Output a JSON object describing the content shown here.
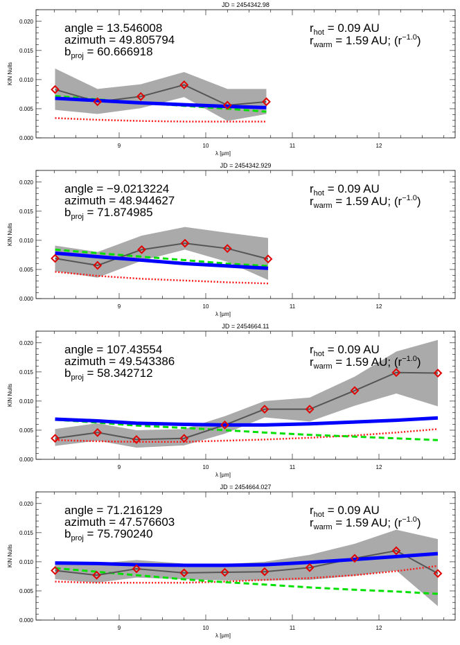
{
  "chart_data": [
    {
      "type": "line",
      "title": "JD = 2454342.98",
      "xlabel": "λ [µm]",
      "ylabel": "KIN Nulls",
      "xlim": [
        8.04,
        12.88
      ],
      "ylim": [
        0,
        0.022
      ],
      "xticks": [
        9,
        10,
        11,
        12
      ],
      "yticks": [
        "0.000",
        "0.005",
        "0.010",
        "0.015",
        "0.020"
      ],
      "annotation_left": {
        "angle": "angle = 13.546008",
        "azimuth": "azimuth = 49.805794",
        "b": "b",
        "b_sub": "proj",
        "b_value": " = 60.666918"
      },
      "annotation_right": {
        "r": "r",
        "hot_sub": "hot",
        "hot_value": " = 0.09 AU",
        "warm_sub": "warm",
        "warm_value": " = 1.59 AU; (r",
        "exponent": "−1.0",
        "close": ")"
      },
      "x": [
        8.26,
        8.75,
        9.25,
        9.75,
        10.25,
        10.7
      ],
      "series": [
        {
          "role": "measured",
          "values": [
            0.0083,
            0.0062,
            0.0071,
            0.0091,
            0.0056,
            0.0062
          ],
          "upper": [
            0.0119,
            0.0084,
            0.0092,
            0.0113,
            0.0084,
            0.0084
          ],
          "lower": [
            0.0048,
            0.0041,
            0.0051,
            0.007,
            0.0029,
            0.0041
          ]
        },
        {
          "role": "total-model",
          "values": [
            0.0068,
            0.0064,
            0.006,
            0.0057,
            0.0054,
            0.0052
          ]
        },
        {
          "role": "warm-model",
          "values": [
            0.0072,
            0.0066,
            0.006,
            0.0055,
            0.005,
            0.0045
          ]
        },
        {
          "role": "hot-model",
          "values": [
            0.0034,
            0.0031,
            0.0029,
            0.0028,
            0.0028,
            0.0028
          ]
        }
      ]
    },
    {
      "type": "line",
      "title": "JD = 2454342.929",
      "xlabel": "λ [µm]",
      "ylabel": "KIN Nulls",
      "xlim": [
        8.04,
        12.88
      ],
      "ylim": [
        0,
        0.022
      ],
      "xticks": [
        9,
        10,
        11,
        12
      ],
      "yticks": [
        "0.000",
        "0.005",
        "0.010",
        "0.015",
        "0.020"
      ],
      "annotation_left": {
        "angle": "angle = −9.0213224",
        "azimuth": "azimuth = 48.944627",
        "b": "b",
        "b_sub": "proj",
        "b_value": " = 71.874985"
      },
      "annotation_right": {
        "r": "r",
        "hot_sub": "hot",
        "hot_value": " = 0.09 AU",
        "warm_sub": "warm",
        "warm_value": " = 1.59 AU; (r",
        "exponent": "−1.0",
        "close": ")"
      },
      "x": [
        8.26,
        8.75,
        9.26,
        9.76,
        10.25,
        10.72
      ],
      "series": [
        {
          "role": "measured",
          "values": [
            0.0069,
            0.0057,
            0.0084,
            0.0095,
            0.0086,
            0.0068
          ],
          "upper": [
            0.0091,
            0.008,
            0.0108,
            0.0123,
            0.0113,
            0.0104
          ],
          "lower": [
            0.0047,
            0.0036,
            0.0065,
            0.0084,
            0.0063,
            0.0032
          ]
        },
        {
          "role": "total-model",
          "values": [
            0.0078,
            0.0072,
            0.0066,
            0.006,
            0.0056,
            0.0052
          ]
        },
        {
          "role": "warm-model",
          "values": [
            0.0084,
            0.0078,
            0.0072,
            0.0066,
            0.006,
            0.0056
          ]
        },
        {
          "role": "hot-model",
          "values": [
            0.0046,
            0.0039,
            0.0034,
            0.0031,
            0.0028,
            0.0026
          ]
        }
      ]
    },
    {
      "type": "line",
      "title": "JD = 2454664.11",
      "xlabel": "λ [µm]",
      "ylabel": "KIN Nulls",
      "xlim": [
        8.04,
        12.88
      ],
      "ylim": [
        0,
        0.022
      ],
      "xticks": [
        9,
        10,
        11,
        12
      ],
      "yticks": [
        "0.000",
        "0.005",
        "0.010",
        "0.015",
        "0.020"
      ],
      "annotation_left": {
        "angle": "angle = 107.43554",
        "azimuth": "azimuth = 49.543386",
        "b": "b",
        "b_sub": "proj",
        "b_value": " = 58.342712"
      },
      "annotation_right": {
        "r": "r",
        "hot_sub": "hot",
        "hot_value": " = 0.09 AU",
        "warm_sub": "warm",
        "warm_value": " = 1.59 AU; (r",
        "exponent": "−1.0",
        "close": ")"
      },
      "x": [
        8.26,
        8.75,
        9.2,
        9.75,
        10.22,
        10.68,
        11.2,
        11.72,
        12.2,
        12.68
      ],
      "series": [
        {
          "role": "measured",
          "values": [
            0.0036,
            0.0046,
            0.0034,
            0.0036,
            0.0059,
            0.0086,
            0.0086,
            0.0118,
            0.0149,
            0.0148
          ],
          "upper": [
            0.0052,
            0.0062,
            0.005,
            0.0052,
            0.0074,
            0.01,
            0.0106,
            0.0142,
            0.0185,
            0.0205
          ],
          "lower": [
            0.0023,
            0.0032,
            0.002,
            0.0024,
            0.0044,
            0.0072,
            0.0065,
            0.0092,
            0.0113,
            0.0091
          ]
        },
        {
          "role": "total-model",
          "values": [
            0.0069,
            0.0066,
            0.0062,
            0.006,
            0.0059,
            0.0059,
            0.0061,
            0.0064,
            0.0067,
            0.0071
          ]
        },
        {
          "role": "warm-model",
          "values": [
            0.0068,
            0.0063,
            0.0058,
            0.0054,
            0.005,
            0.0046,
            0.0042,
            0.0039,
            0.0036,
            0.0033
          ]
        },
        {
          "role": "hot-model",
          "values": [
            0.0033,
            0.0031,
            0.003,
            0.003,
            0.0032,
            0.0034,
            0.0037,
            0.0041,
            0.0046,
            0.0052
          ]
        }
      ]
    },
    {
      "type": "line",
      "title": "JD = 2454664.027",
      "xlabel": "λ [µm]",
      "ylabel": "KIN Nulls",
      "xlim": [
        8.04,
        12.88
      ],
      "ylim": [
        0,
        0.022
      ],
      "xticks": [
        9,
        10,
        11,
        12
      ],
      "yticks": [
        "0.000",
        "0.005",
        "0.010",
        "0.015",
        "0.020"
      ],
      "annotation_left": {
        "angle": "angle = 71.216129",
        "azimuth": "azimuth = 47.576603",
        "b": "b",
        "b_sub": "proj",
        "b_value": " = 75.790240"
      },
      "annotation_right": {
        "r": "r",
        "hot_sub": "hot",
        "hot_value": " = 0.09 AU",
        "warm_sub": "warm",
        "warm_value": " = 1.59 AU; (r",
        "exponent": "−1.0",
        "close": ")"
      },
      "x": [
        8.26,
        8.74,
        9.2,
        9.75,
        10.22,
        10.68,
        11.2,
        11.72,
        12.2,
        12.68
      ],
      "series": [
        {
          "role": "measured",
          "values": [
            0.0085,
            0.0077,
            0.0088,
            0.0081,
            0.0082,
            0.0083,
            0.009,
            0.0106,
            0.0119,
            0.008
          ],
          "upper": [
            0.0096,
            0.0097,
            0.0103,
            0.0097,
            0.0096,
            0.01,
            0.0112,
            0.0131,
            0.0155,
            0.0139
          ],
          "lower": [
            0.007,
            0.0064,
            0.0073,
            0.007,
            0.0068,
            0.0068,
            0.0069,
            0.0076,
            0.0085,
            0.0024
          ]
        },
        {
          "role": "total-model",
          "values": [
            0.0098,
            0.0097,
            0.0095,
            0.0094,
            0.0094,
            0.0095,
            0.0099,
            0.0104,
            0.0109,
            0.0114
          ]
        },
        {
          "role": "warm-model",
          "values": [
            0.0089,
            0.0083,
            0.0077,
            0.007,
            0.0065,
            0.0061,
            0.0056,
            0.0052,
            0.0049,
            0.0045
          ]
        },
        {
          "role": "hot-model",
          "values": [
            0.0066,
            0.0064,
            0.0064,
            0.0064,
            0.0066,
            0.0069,
            0.0072,
            0.0077,
            0.0084,
            0.0093
          ]
        }
      ]
    }
  ],
  "colors": {
    "band": "#aaaaaa",
    "measured": "#555555",
    "marker": "#e00000",
    "total-model": "#0000ff",
    "warm-model": "#00e000",
    "hot-model": "#ff1a1a"
  }
}
